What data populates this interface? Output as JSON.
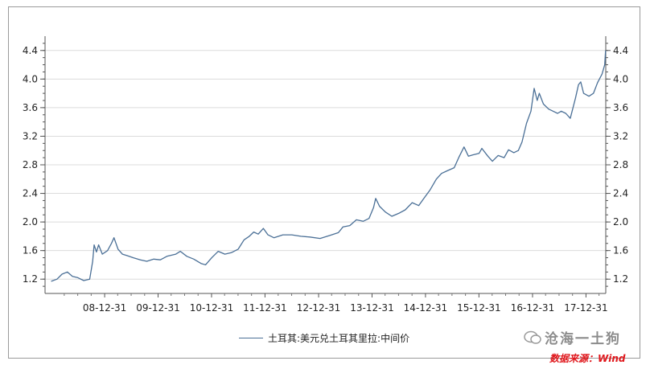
{
  "chart_data": {
    "type": "line",
    "series": [
      {
        "name": "土耳其:美元兑土耳其里拉:中间价",
        "color": "#4a6f96",
        "points": [
          [
            "2008-01-01",
            1.17
          ],
          [
            "2008-02-10",
            1.2
          ],
          [
            "2008-03-15",
            1.27
          ],
          [
            "2008-04-20",
            1.3
          ],
          [
            "2008-05-25",
            1.24
          ],
          [
            "2008-07-01",
            1.22
          ],
          [
            "2008-08-10",
            1.18
          ],
          [
            "2008-09-20",
            1.2
          ],
          [
            "2008-10-10",
            1.45
          ],
          [
            "2008-10-20",
            1.68
          ],
          [
            "2008-11-05",
            1.58
          ],
          [
            "2008-11-20",
            1.68
          ],
          [
            "2008-12-15",
            1.55
          ],
          [
            "2009-01-20",
            1.6
          ],
          [
            "2009-02-15",
            1.7
          ],
          [
            "2009-03-05",
            1.78
          ],
          [
            "2009-04-01",
            1.62
          ],
          [
            "2009-05-01",
            1.55
          ],
          [
            "2009-06-01",
            1.53
          ],
          [
            "2009-07-15",
            1.5
          ],
          [
            "2009-09-01",
            1.47
          ],
          [
            "2009-10-15",
            1.45
          ],
          [
            "2009-12-01",
            1.48
          ],
          [
            "2010-01-15",
            1.47
          ],
          [
            "2010-03-01",
            1.52
          ],
          [
            "2010-05-01",
            1.55
          ],
          [
            "2010-06-01",
            1.59
          ],
          [
            "2010-07-15",
            1.52
          ],
          [
            "2010-09-01",
            1.48
          ],
          [
            "2010-10-20",
            1.42
          ],
          [
            "2010-11-20",
            1.4
          ],
          [
            "2011-01-01",
            1.5
          ],
          [
            "2011-02-15",
            1.59
          ],
          [
            "2011-04-01",
            1.55
          ],
          [
            "2011-05-15",
            1.57
          ],
          [
            "2011-07-01",
            1.62
          ],
          [
            "2011-08-10",
            1.75
          ],
          [
            "2011-09-15",
            1.8
          ],
          [
            "2011-10-15",
            1.86
          ],
          [
            "2011-11-15",
            1.83
          ],
          [
            "2011-12-20",
            1.91
          ],
          [
            "2012-01-20",
            1.82
          ],
          [
            "2012-03-01",
            1.78
          ],
          [
            "2012-05-01",
            1.82
          ],
          [
            "2012-07-01",
            1.82
          ],
          [
            "2012-09-01",
            1.8
          ],
          [
            "2012-11-01",
            1.79
          ],
          [
            "2013-01-10",
            1.77
          ],
          [
            "2013-03-15",
            1.81
          ],
          [
            "2013-05-15",
            1.85
          ],
          [
            "2013-06-15",
            1.93
          ],
          [
            "2013-08-01",
            1.95
          ],
          [
            "2013-09-15",
            2.03
          ],
          [
            "2013-11-01",
            2.01
          ],
          [
            "2013-12-10",
            2.05
          ],
          [
            "2014-01-10",
            2.2
          ],
          [
            "2014-01-25",
            2.33
          ],
          [
            "2014-02-20",
            2.22
          ],
          [
            "2014-04-01",
            2.14
          ],
          [
            "2014-05-15",
            2.08
          ],
          [
            "2014-07-01",
            2.12
          ],
          [
            "2014-08-15",
            2.17
          ],
          [
            "2014-10-01",
            2.27
          ],
          [
            "2014-11-15",
            2.23
          ],
          [
            "2014-12-20",
            2.33
          ],
          [
            "2015-02-01",
            2.45
          ],
          [
            "2015-03-15",
            2.6
          ],
          [
            "2015-04-20",
            2.68
          ],
          [
            "2015-06-01",
            2.72
          ],
          [
            "2015-07-15",
            2.76
          ],
          [
            "2015-08-15",
            2.9
          ],
          [
            "2015-09-20",
            3.05
          ],
          [
            "2015-10-20",
            2.92
          ],
          [
            "2015-11-20",
            2.94
          ],
          [
            "2016-01-01",
            2.96
          ],
          [
            "2016-01-20",
            3.03
          ],
          [
            "2016-03-01",
            2.92
          ],
          [
            "2016-04-01",
            2.85
          ],
          [
            "2016-05-10",
            2.93
          ],
          [
            "2016-06-20",
            2.9
          ],
          [
            "2016-07-20",
            3.01
          ],
          [
            "2016-08-25",
            2.97
          ],
          [
            "2016-09-25",
            3.0
          ],
          [
            "2016-10-20",
            3.12
          ],
          [
            "2016-11-20",
            3.38
          ],
          [
            "2016-12-20",
            3.55
          ],
          [
            "2017-01-11",
            3.87
          ],
          [
            "2017-02-01",
            3.7
          ],
          [
            "2017-02-15",
            3.8
          ],
          [
            "2017-03-15",
            3.65
          ],
          [
            "2017-04-20",
            3.58
          ],
          [
            "2017-05-20",
            3.55
          ],
          [
            "2017-06-20",
            3.52
          ],
          [
            "2017-07-15",
            3.55
          ],
          [
            "2017-08-15",
            3.52
          ],
          [
            "2017-09-15",
            3.45
          ],
          [
            "2017-10-20",
            3.73
          ],
          [
            "2017-11-10",
            3.92
          ],
          [
            "2017-11-25",
            3.96
          ],
          [
            "2017-12-15",
            3.8
          ],
          [
            "2018-01-20",
            3.76
          ],
          [
            "2018-02-20",
            3.8
          ],
          [
            "2018-03-20",
            3.95
          ],
          [
            "2018-04-20",
            4.07
          ],
          [
            "2018-05-08",
            4.2
          ],
          [
            "2018-05-14",
            4.4
          ]
        ]
      }
    ],
    "xlim": [
      "2007-11-20",
      "2018-05-15"
    ],
    "x_ticks": [
      {
        "date": "2008-12-31",
        "label": "08-12-31"
      },
      {
        "date": "2009-12-31",
        "label": "09-12-31"
      },
      {
        "date": "2010-12-31",
        "label": "10-12-31"
      },
      {
        "date": "2011-12-31",
        "label": "11-12-31"
      },
      {
        "date": "2012-12-31",
        "label": "12-12-31"
      },
      {
        "date": "2013-12-31",
        "label": "13-12-31"
      },
      {
        "date": "2014-12-31",
        "label": "14-12-31"
      },
      {
        "date": "2015-12-31",
        "label": "15-12-31"
      },
      {
        "date": "2016-12-31",
        "label": "16-12-31"
      },
      {
        "date": "2017-12-31",
        "label": "17-12-31"
      }
    ],
    "ylim": [
      1.0,
      4.6
    ],
    "y_ticks": [
      1.2,
      1.6,
      2.0,
      2.4,
      2.8,
      3.2,
      3.6,
      4.0,
      4.4
    ],
    "y_tick_labels": [
      "1.2",
      "1.6",
      "2.0",
      "2.4",
      "2.8",
      "3.2",
      "3.6",
      "4.0",
      "4.4"
    ],
    "y_minor_step": 0.1,
    "dual_y_axis": true,
    "grid": "horizontal",
    "legend": "bottom-center"
  },
  "watermark_text": "沧海一土狗",
  "source_text": "数据来源：Wind"
}
